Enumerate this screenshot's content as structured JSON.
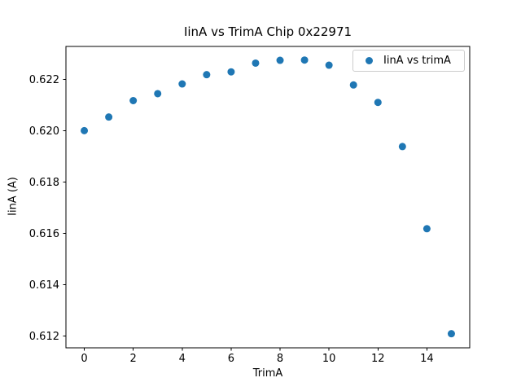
{
  "chart_data": {
    "type": "scatter",
    "title": "IinA vs TrimA Chip 0x22971",
    "xlabel": "TrimA",
    "ylabel": "IinA (A)",
    "legend": {
      "label": "IinA vs trimA",
      "position": "upper right",
      "frame": true
    },
    "series": [
      {
        "name": "IinA vs trimA",
        "x": [
          0,
          1,
          2,
          3,
          4,
          5,
          6,
          7,
          8,
          9,
          10,
          11,
          12,
          13,
          14,
          15
        ],
        "y": [
          0.62,
          0.62053,
          0.62117,
          0.62144,
          0.62182,
          0.62218,
          0.62229,
          0.62263,
          0.62274,
          0.62275,
          0.62255,
          0.62178,
          0.6211,
          0.61938,
          0.61618,
          0.61209
        ]
      }
    ],
    "xlim": [
      -0.75,
      15.75
    ],
    "ylim": [
      0.61154,
      0.62328
    ],
    "xticks": [
      0,
      2,
      4,
      6,
      8,
      10,
      12,
      14
    ],
    "xtick_labels": [
      "0",
      "2",
      "4",
      "6",
      "8",
      "10",
      "12",
      "14"
    ],
    "yticks": [
      0.612,
      0.614,
      0.616,
      0.618,
      0.62,
      0.622
    ],
    "ytick_labels": [
      "0.612",
      "0.614",
      "0.616",
      "0.618",
      "0.620",
      "0.622"
    ],
    "grid": false,
    "marker_color": "#1f77b4",
    "axis_color": "#000000",
    "background_color": "#ffffff"
  }
}
